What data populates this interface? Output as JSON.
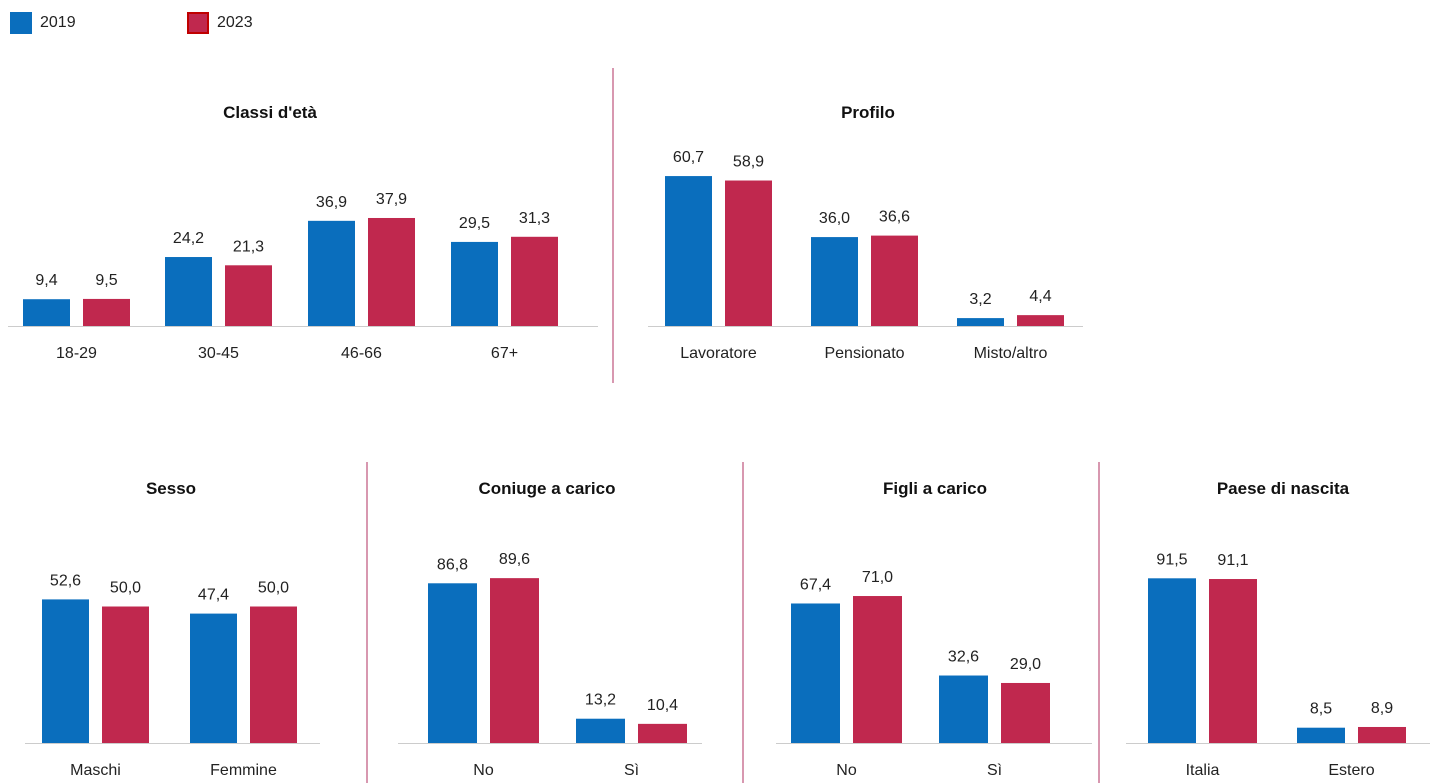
{
  "legend": [
    {
      "name": "2019",
      "color": "#0a6ebd"
    },
    {
      "name": "2023",
      "color": "#c0284e",
      "border": "#c00000"
    }
  ],
  "colors": {
    "2019": "#0a6ebd",
    "2023": "#c0284e",
    "divider": "#b03060",
    "axis": "#cccccc"
  },
  "chart_data": [
    {
      "type": "bar",
      "title": "Classi d'età",
      "categories": [
        "18-29",
        "30-45",
        "46-66",
        "67+"
      ],
      "series": [
        {
          "name": "2019",
          "values": [
            9.4,
            24.2,
            36.9,
            29.5
          ],
          "labels": [
            "9,4",
            "24,2",
            "36,9",
            "29,5"
          ]
        },
        {
          "name": "2023",
          "values": [
            9.5,
            21.3,
            37.9,
            31.3
          ],
          "labels": [
            "9,5",
            "21,3",
            "37,9",
            "31,3"
          ]
        }
      ]
    },
    {
      "type": "bar",
      "title": "Profilo",
      "categories": [
        "Lavoratore",
        "Pensionato",
        "Misto/altro"
      ],
      "series": [
        {
          "name": "2019",
          "values": [
            60.7,
            36.0,
            3.2
          ],
          "labels": [
            "60,7",
            "36,0",
            "3,2"
          ]
        },
        {
          "name": "2023",
          "values": [
            58.9,
            36.6,
            4.4
          ],
          "labels": [
            "58,9",
            "36,6",
            "4,4"
          ]
        }
      ]
    },
    {
      "type": "bar",
      "title": "Sesso",
      "categories": [
        "Maschi",
        "Femmine"
      ],
      "series": [
        {
          "name": "2019",
          "values": [
            52.6,
            47.4
          ],
          "labels": [
            "52,6",
            "47,4"
          ]
        },
        {
          "name": "2023",
          "values": [
            50.0,
            50.0
          ],
          "labels": [
            "50,0",
            "50,0"
          ]
        }
      ]
    },
    {
      "type": "bar",
      "title": "Coniuge a carico",
      "categories": [
        "No",
        "Sì"
      ],
      "series": [
        {
          "name": "2019",
          "values": [
            86.8,
            13.2
          ],
          "labels": [
            "86,8",
            "13,2"
          ]
        },
        {
          "name": "2023",
          "values": [
            89.6,
            10.4
          ],
          "labels": [
            "89,6",
            "10,4"
          ]
        }
      ]
    },
    {
      "type": "bar",
      "title": "Figli a carico",
      "categories": [
        "No",
        "Sì"
      ],
      "series": [
        {
          "name": "2019",
          "values": [
            67.4,
            32.6
          ],
          "labels": [
            "67,4",
            "32,6"
          ]
        },
        {
          "name": "2023",
          "values": [
            71.0,
            29.0
          ],
          "labels": [
            "71,0",
            "29,0"
          ]
        }
      ]
    },
    {
      "type": "bar",
      "title": "Paese di nascita",
      "categories": [
        "Italia",
        "Estero"
      ],
      "series": [
        {
          "name": "2019",
          "values": [
            91.5,
            8.5
          ],
          "labels": [
            "91,5",
            "8,5"
          ]
        },
        {
          "name": "2023",
          "values": [
            91.1,
            8.9
          ],
          "labels": [
            "91,1",
            "8,9"
          ]
        }
      ]
    }
  ]
}
